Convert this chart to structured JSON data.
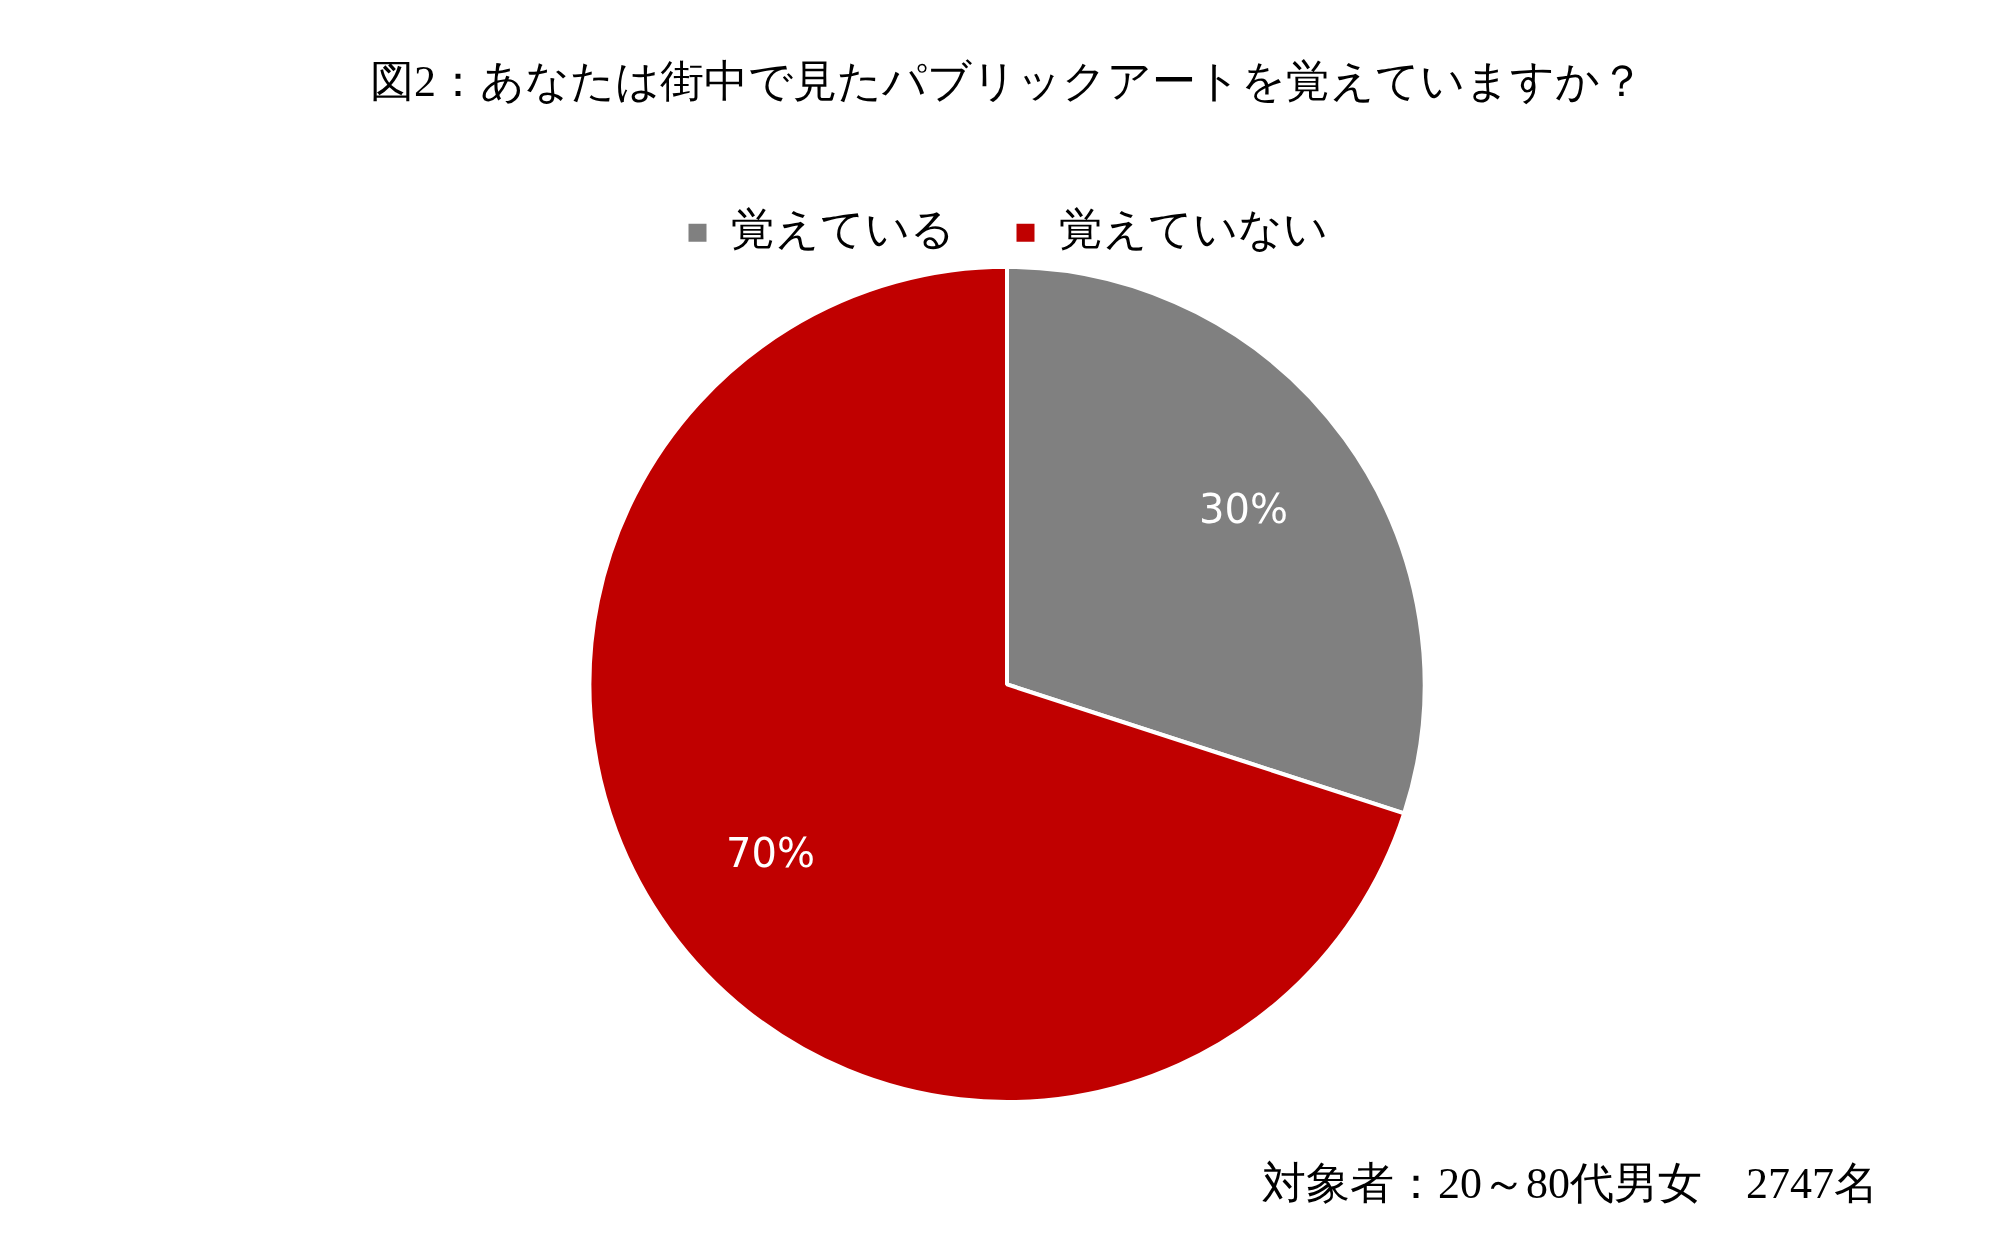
{
  "chart_data": {
    "type": "pie",
    "title": "図2：あなたは街中で見たパブリックアートを覚えていますか？",
    "categories": [
      "覚えている",
      "覚えていない"
    ],
    "values": [
      30,
      70
    ],
    "colors": [
      "#808080",
      "#c00000"
    ],
    "value_labels": [
      "30%",
      "70%"
    ],
    "legend": "top",
    "annotations": [
      "対象者：20～80代男女　2747名"
    ]
  }
}
